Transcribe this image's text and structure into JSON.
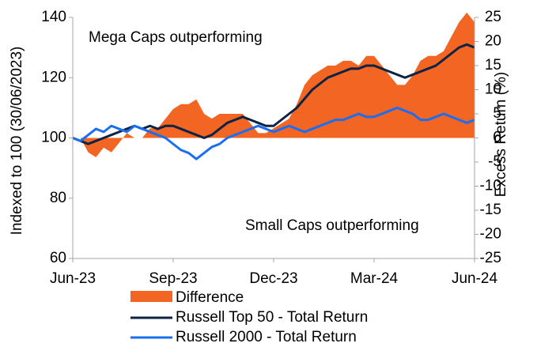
{
  "chart_data": {
    "type": "line",
    "y_label": "Indexed to 100 (30/06/2023)",
    "y2_label": "Excess Return (%)",
    "annotations": [
      "Mega Caps outperforming",
      "Small Caps outperforming"
    ],
    "categories": [
      "Jun-23",
      null,
      null,
      null,
      null,
      null,
      null,
      null,
      null,
      null,
      null,
      null,
      null,
      "Sep-23",
      null,
      null,
      null,
      null,
      null,
      null,
      null,
      null,
      null,
      null,
      null,
      null,
      "Dec-23",
      null,
      null,
      null,
      null,
      null,
      null,
      null,
      null,
      null,
      null,
      null,
      null,
      "Mar-24",
      null,
      null,
      null,
      null,
      null,
      null,
      null,
      null,
      null,
      null,
      null,
      null,
      "Jun-24"
    ],
    "series": [
      {
        "name": "Difference",
        "kind": "area",
        "axis": "y2",
        "color": "#f26522",
        "values": [
          0,
          0,
          -3,
          -4,
          -2,
          -3,
          -1,
          1,
          0,
          0,
          2,
          2,
          4,
          6,
          7,
          7,
          8,
          5,
          4,
          5,
          5,
          5,
          5,
          3,
          1,
          1,
          2,
          3,
          4,
          7,
          11,
          13,
          14,
          15,
          15,
          16,
          16,
          15,
          17,
          17,
          15,
          13,
          11,
          11,
          13,
          16,
          17,
          17,
          18,
          21,
          24,
          26,
          24
        ]
      },
      {
        "name": "Russell Top 50 - Total Return",
        "kind": "line",
        "color": "#0d2344",
        "values": [
          100,
          99,
          98,
          99,
          100,
          101,
          102,
          103,
          104,
          103,
          104,
          103,
          104,
          104,
          103,
          102,
          101,
          100,
          101,
          103,
          105,
          106,
          107,
          106,
          105,
          104,
          104,
          106,
          108,
          110,
          113,
          116,
          118,
          120,
          121,
          122,
          123,
          123,
          124,
          124,
          123,
          122,
          121,
          120,
          121,
          122,
          123,
          124,
          126,
          128,
          130,
          131,
          130
        ]
      },
      {
        "name": "Russell 2000 - Total Return",
        "kind": "line",
        "color": "#1a6ef0",
        "values": [
          100,
          99,
          101,
          103,
          102,
          104,
          103,
          102,
          104,
          103,
          102,
          101,
          100,
          98,
          96,
          95,
          93,
          95,
          97,
          98,
          100,
          101,
          102,
          103,
          104,
          103,
          102,
          103,
          104,
          103,
          102,
          103,
          104,
          105,
          106,
          106,
          107,
          108,
          107,
          107,
          108,
          109,
          110,
          109,
          108,
          106,
          106,
          107,
          108,
          107,
          106,
          105,
          106
        ]
      }
    ],
    "ylim": [
      60,
      140
    ],
    "yticks": [
      60,
      80,
      100,
      120,
      140
    ],
    "y2lim": [
      -25,
      25
    ],
    "y2ticks": [
      -25,
      -20,
      -15,
      -10,
      -5,
      0,
      5,
      10,
      15,
      20,
      25
    ]
  }
}
